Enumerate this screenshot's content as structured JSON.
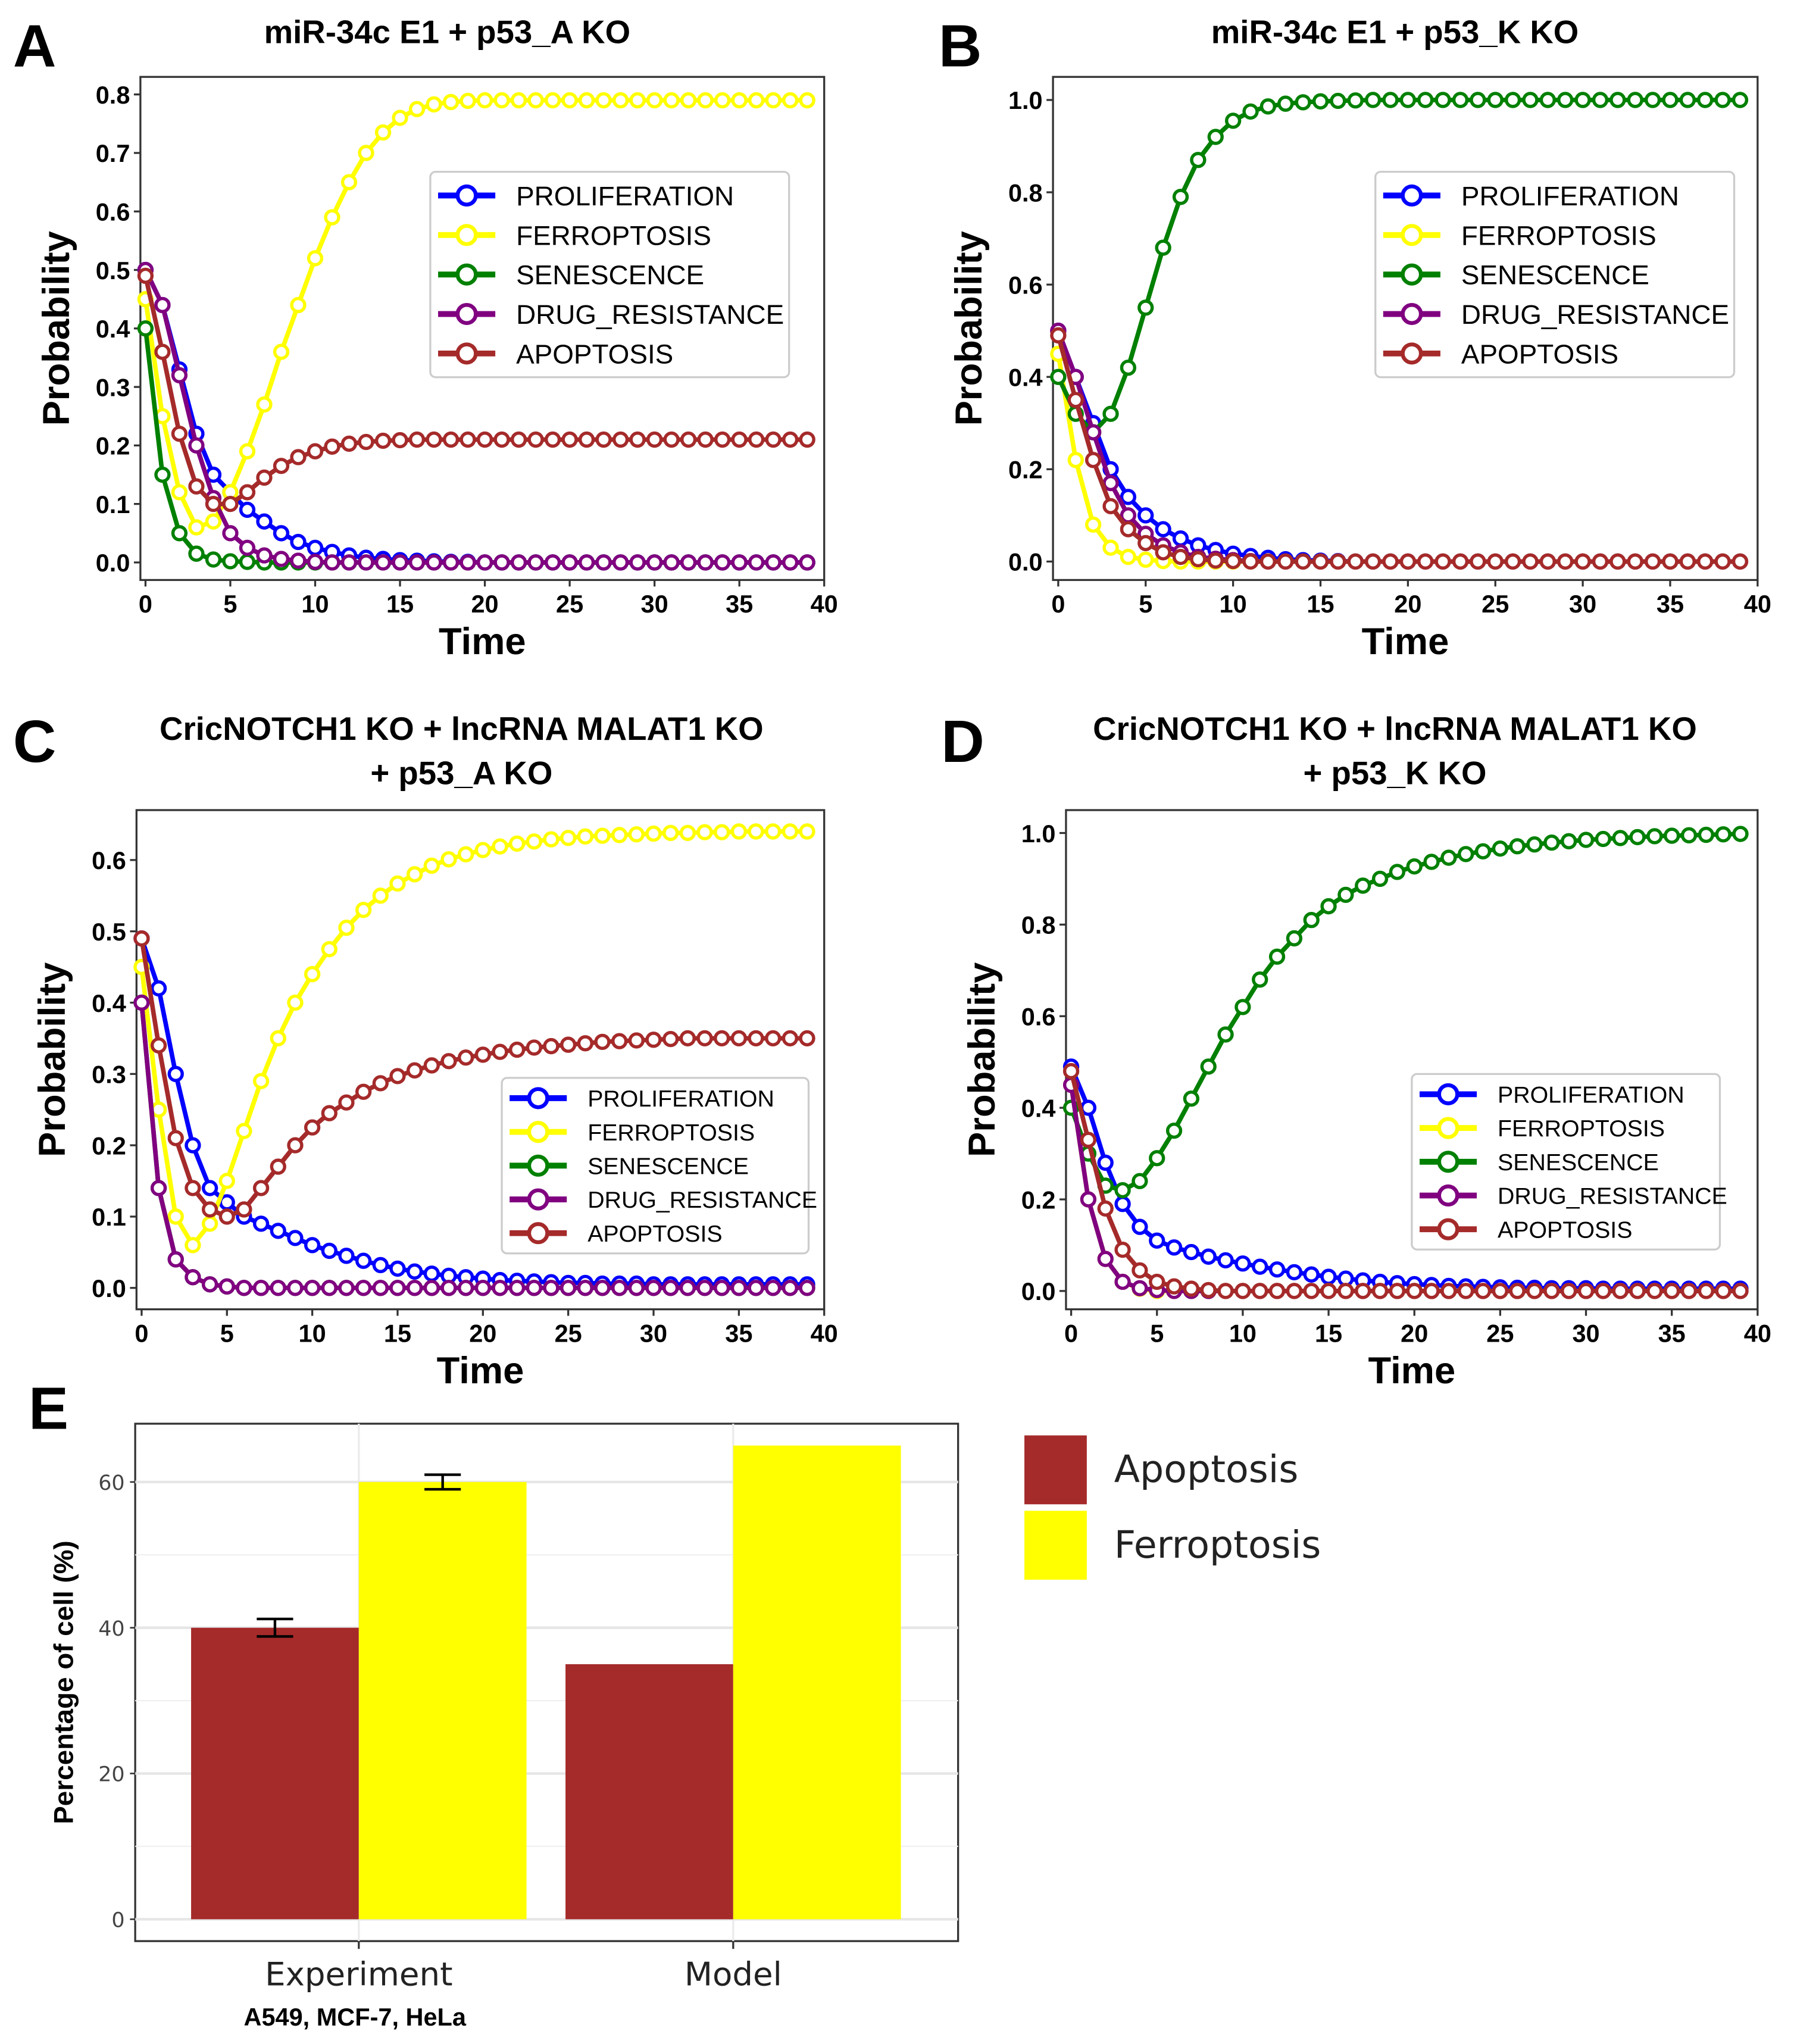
{
  "chart_data": [
    {
      "panel": "A",
      "type": "line",
      "title": [
        "miR-34c E1 + p53_A KO"
      ],
      "xlabel": "Time",
      "ylabel": "Probability",
      "xlim": [
        -0.3,
        40
      ],
      "ylim": [
        -0.03,
        0.83
      ],
      "xticks": [
        0,
        5,
        10,
        15,
        20,
        25,
        30,
        35,
        40
      ],
      "yticks": [
        0.0,
        0.1,
        0.2,
        0.3,
        0.4,
        0.5,
        0.6,
        0.7,
        0.8
      ],
      "ytick_labels": [
        "0.0",
        "0.1",
        "0.2",
        "0.3",
        "0.4",
        "0.5",
        "0.6",
        "0.7",
        "0.8"
      ],
      "legend_position": "center-right",
      "x_start": 0,
      "x_step": 1,
      "series": [
        {
          "name": "PROLIFERATION",
          "color": "#0000ff",
          "values": [
            0.5,
            0.44,
            0.33,
            0.22,
            0.15,
            0.12,
            0.09,
            0.07,
            0.05,
            0.035,
            0.025,
            0.018,
            0.012,
            0.008,
            0.006,
            0.004,
            0.003,
            0.002,
            0.001,
            0.001,
            0,
            0,
            0,
            0,
            0,
            0,
            0,
            0,
            0,
            0,
            0,
            0,
            0,
            0,
            0,
            0,
            0,
            0,
            0,
            0
          ]
        },
        {
          "name": "FERROPTOSIS",
          "color": "#ffff00",
          "values": [
            0.45,
            0.25,
            0.12,
            0.06,
            0.07,
            0.12,
            0.19,
            0.27,
            0.36,
            0.44,
            0.52,
            0.59,
            0.65,
            0.7,
            0.735,
            0.76,
            0.775,
            0.783,
            0.787,
            0.789,
            0.79,
            0.79,
            0.79,
            0.79,
            0.79,
            0.79,
            0.79,
            0.79,
            0.79,
            0.79,
            0.79,
            0.79,
            0.79,
            0.79,
            0.79,
            0.79,
            0.79,
            0.79,
            0.79,
            0.79
          ]
        },
        {
          "name": "SENESCENCE",
          "color": "#008000",
          "values": [
            0.4,
            0.15,
            0.05,
            0.015,
            0.005,
            0.002,
            0.001,
            0,
            0,
            0,
            0,
            0,
            0,
            0,
            0,
            0,
            0,
            0,
            0,
            0,
            0,
            0,
            0,
            0,
            0,
            0,
            0,
            0,
            0,
            0,
            0,
            0,
            0,
            0,
            0,
            0,
            0,
            0,
            0,
            0
          ]
        },
        {
          "name": "DRUG_RESISTANCE",
          "color": "#800080",
          "values": [
            0.5,
            0.44,
            0.32,
            0.2,
            0.11,
            0.05,
            0.025,
            0.012,
            0.006,
            0.003,
            0.001,
            0,
            0,
            0,
            0,
            0,
            0,
            0,
            0,
            0,
            0,
            0,
            0,
            0,
            0,
            0,
            0,
            0,
            0,
            0,
            0,
            0,
            0,
            0,
            0,
            0,
            0,
            0,
            0,
            0
          ]
        },
        {
          "name": "APOPTOSIS",
          "color": "#a52a2a",
          "values": [
            0.49,
            0.36,
            0.22,
            0.13,
            0.1,
            0.1,
            0.12,
            0.145,
            0.165,
            0.18,
            0.19,
            0.198,
            0.203,
            0.206,
            0.208,
            0.209,
            0.21,
            0.21,
            0.21,
            0.21,
            0.21,
            0.21,
            0.21,
            0.21,
            0.21,
            0.21,
            0.21,
            0.21,
            0.21,
            0.21,
            0.21,
            0.21,
            0.21,
            0.21,
            0.21,
            0.21,
            0.21,
            0.21,
            0.21,
            0.21
          ]
        }
      ]
    },
    {
      "panel": "B",
      "type": "line",
      "title": [
        "miR-34c E1 + p53_K KO"
      ],
      "xlabel": "Time",
      "ylabel": "Probability",
      "xlim": [
        -0.3,
        40
      ],
      "ylim": [
        -0.04,
        1.05
      ],
      "xticks": [
        0,
        5,
        10,
        15,
        20,
        25,
        30,
        35,
        40
      ],
      "yticks": [
        0.0,
        0.2,
        0.4,
        0.6,
        0.8,
        1.0
      ],
      "ytick_labels": [
        "0.0",
        "0.2",
        "0.4",
        "0.6",
        "0.8",
        "1.0"
      ],
      "legend_position": "center-right",
      "x_start": 0,
      "x_step": 1,
      "series": [
        {
          "name": "PROLIFERATION",
          "color": "#0000ff",
          "values": [
            0.5,
            0.4,
            0.3,
            0.2,
            0.14,
            0.1,
            0.07,
            0.05,
            0.035,
            0.025,
            0.017,
            0.012,
            0.008,
            0.005,
            0.003,
            0.002,
            0.001,
            0,
            0,
            0,
            0,
            0,
            0,
            0,
            0,
            0,
            0,
            0,
            0,
            0,
            0,
            0,
            0,
            0,
            0,
            0,
            0,
            0,
            0,
            0
          ]
        },
        {
          "name": "FERROPTOSIS",
          "color": "#ffff00",
          "values": [
            0.45,
            0.22,
            0.08,
            0.03,
            0.01,
            0.004,
            0.001,
            0,
            0,
            0,
            0,
            0,
            0,
            0,
            0,
            0,
            0,
            0,
            0,
            0,
            0,
            0,
            0,
            0,
            0,
            0,
            0,
            0,
            0,
            0,
            0,
            0,
            0,
            0,
            0,
            0,
            0,
            0,
            0,
            0
          ]
        },
        {
          "name": "SENESCENCE",
          "color": "#008000",
          "values": [
            0.4,
            0.32,
            0.28,
            0.32,
            0.42,
            0.55,
            0.68,
            0.79,
            0.87,
            0.92,
            0.955,
            0.975,
            0.986,
            0.992,
            0.995,
            0.997,
            0.998,
            0.999,
            1,
            1,
            1,
            1,
            1,
            1,
            1,
            1,
            1,
            1,
            1,
            1,
            1,
            1,
            1,
            1,
            1,
            1,
            1,
            1,
            1,
            1
          ]
        },
        {
          "name": "DRUG_RESISTANCE",
          "color": "#800080",
          "values": [
            0.5,
            0.4,
            0.28,
            0.17,
            0.1,
            0.06,
            0.035,
            0.02,
            0.01,
            0.006,
            0.003,
            0.001,
            0,
            0,
            0,
            0,
            0,
            0,
            0,
            0,
            0,
            0,
            0,
            0,
            0,
            0,
            0,
            0,
            0,
            0,
            0,
            0,
            0,
            0,
            0,
            0,
            0,
            0,
            0,
            0
          ]
        },
        {
          "name": "APOPTOSIS",
          "color": "#a52a2a",
          "values": [
            0.49,
            0.35,
            0.22,
            0.12,
            0.07,
            0.04,
            0.02,
            0.01,
            0.005,
            0.002,
            0.001,
            0,
            0,
            0,
            0,
            0,
            0,
            0,
            0,
            0,
            0,
            0,
            0,
            0,
            0,
            0,
            0,
            0,
            0,
            0,
            0,
            0,
            0,
            0,
            0,
            0,
            0,
            0,
            0,
            0
          ]
        }
      ]
    },
    {
      "panel": "C",
      "type": "line",
      "title": [
        "CricNOTCH1 KO + lncRNA MALAT1 KO",
        "+ p53_A KO"
      ],
      "xlabel": "Time",
      "ylabel": "Probability",
      "xlim": [
        -0.3,
        40
      ],
      "ylim": [
        -0.03,
        0.67
      ],
      "xticks": [
        0,
        5,
        10,
        15,
        20,
        25,
        30,
        35,
        40
      ],
      "yticks": [
        0.0,
        0.1,
        0.2,
        0.3,
        0.4,
        0.5,
        0.6
      ],
      "ytick_labels": [
        "0.0",
        "0.1",
        "0.2",
        "0.3",
        "0.4",
        "0.5",
        "0.6"
      ],
      "legend_position": "lower-right",
      "x_start": 0,
      "x_step": 1,
      "series": [
        {
          "name": "PROLIFERATION",
          "color": "#0000ff",
          "values": [
            0.49,
            0.42,
            0.3,
            0.2,
            0.14,
            0.12,
            0.1,
            0.09,
            0.08,
            0.07,
            0.06,
            0.052,
            0.045,
            0.038,
            0.032,
            0.027,
            0.023,
            0.02,
            0.017,
            0.015,
            0.013,
            0.011,
            0.01,
            0.009,
            0.008,
            0.007,
            0.007,
            0.006,
            0.006,
            0.006,
            0.005,
            0.005,
            0.005,
            0.005,
            0.005,
            0.005,
            0.005,
            0.005,
            0.005,
            0.005
          ]
        },
        {
          "name": "FERROPTOSIS",
          "color": "#ffff00",
          "values": [
            0.45,
            0.25,
            0.1,
            0.06,
            0.09,
            0.15,
            0.22,
            0.29,
            0.35,
            0.4,
            0.44,
            0.475,
            0.505,
            0.53,
            0.55,
            0.567,
            0.58,
            0.592,
            0.601,
            0.608,
            0.614,
            0.619,
            0.623,
            0.626,
            0.629,
            0.631,
            0.633,
            0.634,
            0.635,
            0.636,
            0.637,
            0.638,
            0.638,
            0.639,
            0.639,
            0.64,
            0.64,
            0.64,
            0.64,
            0.64
          ]
        },
        {
          "name": "SENESCENCE",
          "color": "#008000",
          "values": [
            0.4,
            0.14,
            0.04,
            0.015,
            0.005,
            0.002,
            0,
            0,
            0,
            0,
            0,
            0,
            0,
            0,
            0,
            0,
            0,
            0,
            0,
            0,
            0,
            0,
            0,
            0,
            0,
            0,
            0,
            0,
            0,
            0,
            0,
            0,
            0,
            0,
            0,
            0,
            0,
            0,
            0,
            0
          ]
        },
        {
          "name": "DRUG_RESISTANCE",
          "color": "#800080",
          "values": [
            0.4,
            0.14,
            0.04,
            0.015,
            0.005,
            0.002,
            0,
            0,
            0,
            0,
            0,
            0,
            0,
            0,
            0,
            0,
            0,
            0,
            0,
            0,
            0,
            0,
            0,
            0,
            0,
            0,
            0,
            0,
            0,
            0,
            0,
            0,
            0,
            0,
            0,
            0,
            0,
            0,
            0,
            0
          ]
        },
        {
          "name": "APOPTOSIS",
          "color": "#a52a2a",
          "values": [
            0.49,
            0.34,
            0.21,
            0.14,
            0.11,
            0.1,
            0.11,
            0.14,
            0.17,
            0.2,
            0.225,
            0.245,
            0.26,
            0.275,
            0.287,
            0.297,
            0.305,
            0.312,
            0.318,
            0.323,
            0.327,
            0.331,
            0.334,
            0.337,
            0.339,
            0.341,
            0.343,
            0.345,
            0.346,
            0.347,
            0.348,
            0.349,
            0.35,
            0.35,
            0.35,
            0.35,
            0.35,
            0.35,
            0.35,
            0.35
          ]
        }
      ]
    },
    {
      "panel": "D",
      "type": "line",
      "title": [
        "CricNOTCH1 KO + lncRNA MALAT1 KO",
        "+ p53_K KO"
      ],
      "xlabel": "Time",
      "ylabel": "Probability",
      "xlim": [
        -0.3,
        40
      ],
      "ylim": [
        -0.04,
        1.05
      ],
      "xticks": [
        0,
        5,
        10,
        15,
        20,
        25,
        30,
        35,
        40
      ],
      "yticks": [
        0.0,
        0.2,
        0.4,
        0.6,
        0.8,
        1.0
      ],
      "ytick_labels": [
        "0.0",
        "0.2",
        "0.4",
        "0.6",
        "0.8",
        "1.0"
      ],
      "legend_position": "lower-right",
      "x_start": 0,
      "x_step": 1,
      "series": [
        {
          "name": "PROLIFERATION",
          "color": "#0000ff",
          "values": [
            0.49,
            0.4,
            0.28,
            0.19,
            0.14,
            0.11,
            0.095,
            0.085,
            0.075,
            0.067,
            0.06,
            0.053,
            0.047,
            0.041,
            0.036,
            0.031,
            0.027,
            0.023,
            0.02,
            0.017,
            0.015,
            0.013,
            0.011,
            0.01,
            0.009,
            0.008,
            0.007,
            0.007,
            0.006,
            0.006,
            0.006,
            0.005,
            0.005,
            0.005,
            0.005,
            0.005,
            0.005,
            0.005,
            0.005,
            0.005
          ]
        },
        {
          "name": "FERROPTOSIS",
          "color": "#ffff00",
          "values": [
            0.45,
            0.2,
            0.07,
            0.02,
            0.005,
            0,
            0,
            0,
            0,
            0,
            0,
            0,
            0,
            0,
            0,
            0,
            0,
            0,
            0,
            0,
            0,
            0,
            0,
            0,
            0,
            0,
            0,
            0,
            0,
            0,
            0,
            0,
            0,
            0,
            0,
            0,
            0,
            0,
            0,
            0
          ]
        },
        {
          "name": "SENESCENCE",
          "color": "#008000",
          "values": [
            0.4,
            0.3,
            0.23,
            0.22,
            0.24,
            0.29,
            0.35,
            0.42,
            0.49,
            0.56,
            0.62,
            0.68,
            0.73,
            0.77,
            0.81,
            0.84,
            0.865,
            0.885,
            0.9,
            0.915,
            0.927,
            0.937,
            0.946,
            0.954,
            0.96,
            0.966,
            0.971,
            0.975,
            0.979,
            0.982,
            0.985,
            0.987,
            0.989,
            0.991,
            0.993,
            0.994,
            0.995,
            0.996,
            0.997,
            0.998
          ]
        },
        {
          "name": "DRUG_RESISTANCE",
          "color": "#800080",
          "values": [
            0.45,
            0.2,
            0.07,
            0.02,
            0.006,
            0.002,
            0,
            0,
            0,
            0,
            0,
            0,
            0,
            0,
            0,
            0,
            0,
            0,
            0,
            0,
            0,
            0,
            0,
            0,
            0,
            0,
            0,
            0,
            0,
            0,
            0,
            0,
            0,
            0,
            0,
            0,
            0,
            0,
            0,
            0
          ]
        },
        {
          "name": "APOPTOSIS",
          "color": "#a52a2a",
          "values": [
            0.48,
            0.33,
            0.18,
            0.09,
            0.045,
            0.02,
            0.01,
            0.005,
            0.002,
            0,
            0,
            0,
            0,
            0,
            0,
            0,
            0,
            0,
            0,
            0,
            0,
            0,
            0,
            0,
            0,
            0,
            0,
            0,
            0,
            0,
            0,
            0,
            0,
            0,
            0,
            0,
            0,
            0,
            0,
            0
          ]
        }
      ]
    },
    {
      "panel": "E",
      "type": "bar",
      "title": [],
      "ylabel": "Percentage of cell (%)",
      "categories": [
        "Experiment",
        "Model"
      ],
      "category_sublabels": [
        "A549, MCF-7, HeLa",
        ""
      ],
      "ylim": [
        -3,
        68
      ],
      "yticks": [
        0,
        20,
        40,
        60
      ],
      "ytick_labels": [
        "0",
        "20",
        "40",
        "60"
      ],
      "grid": true,
      "legend_position": "right",
      "series": [
        {
          "name": "Apoptosis",
          "color": "#a52a2a",
          "values": [
            40,
            35
          ],
          "error": [
            1.2,
            null
          ]
        },
        {
          "name": "Ferroptosis",
          "color": "#ffff00",
          "values": [
            60,
            65
          ],
          "error": [
            1.0,
            null
          ]
        }
      ]
    }
  ]
}
